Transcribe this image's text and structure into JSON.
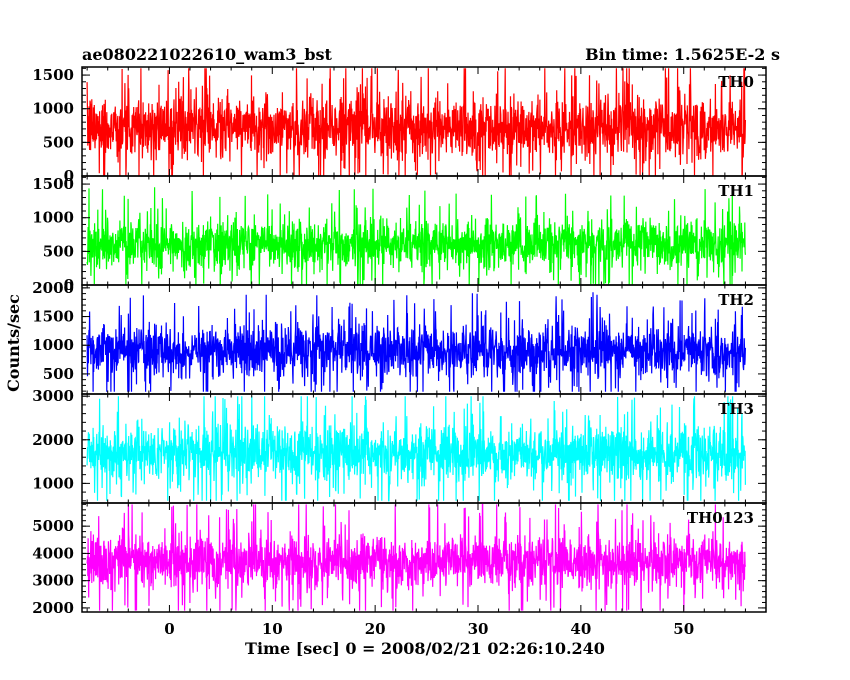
{
  "header": {
    "title": "ae080221022610_wam3_bst",
    "bin_time": "Bin time: 1.5625E-2 s"
  },
  "chart_data": {
    "type": "line",
    "xlabel": "Time [sec] 0 = 2008/02/21 02:26:10.240",
    "ylabel": "Counts/sec",
    "xlim": [
      -8.5,
      58
    ],
    "data_range": [
      -8,
      56
    ],
    "x_ticks": [
      0,
      10,
      20,
      30,
      40,
      50
    ],
    "grid": false,
    "panels": [
      {
        "name": "TH0",
        "color": "#ff0000",
        "ylim": [
          0,
          1620
        ],
        "y_ticks": [
          0,
          500,
          1000,
          1500
        ],
        "typical_range": [
          150,
          1300
        ],
        "extreme_range": [
          0,
          1600
        ]
      },
      {
        "name": "TH1",
        "color": "#00ff00",
        "ylim": [
          0,
          1620
        ],
        "y_ticks": [
          0,
          500,
          1000,
          1500
        ],
        "typical_range": [
          150,
          1050
        ],
        "extreme_range": [
          0,
          1560
        ]
      },
      {
        "name": "TH2",
        "color": "#0000ff",
        "ylim": [
          150,
          2050
        ],
        "y_ticks": [
          500,
          1000,
          1500,
          2000
        ],
        "typical_range": [
          350,
          1450
        ],
        "extreme_range": [
          190,
          1950
        ]
      },
      {
        "name": "TH3",
        "color": "#00ffff",
        "ylim": [
          550,
          3050
        ],
        "y_ticks": [
          1000,
          2000,
          3000
        ],
        "typical_range": [
          900,
          2500
        ],
        "extreme_range": [
          600,
          3000
        ]
      },
      {
        "name": "TH0123",
        "color": "#ff00ff",
        "ylim": [
          1850,
          5850
        ],
        "y_ticks": [
          2000,
          3000,
          4000,
          5000
        ],
        "typical_range": [
          2500,
          4900
        ],
        "extreme_range": [
          1900,
          5800
        ]
      }
    ]
  }
}
